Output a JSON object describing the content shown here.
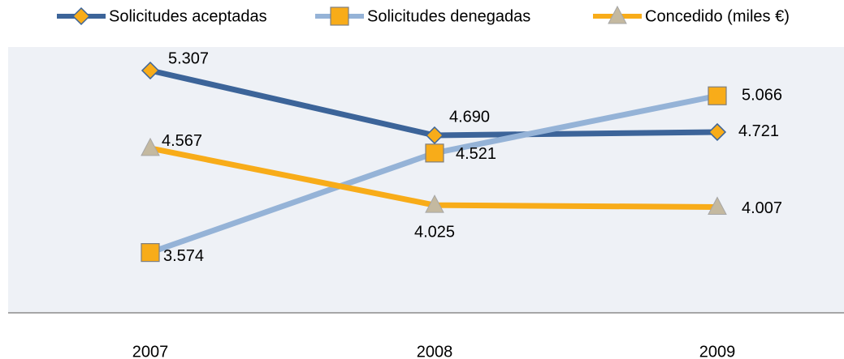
{
  "chart_data": {
    "type": "line",
    "categories": [
      "2007",
      "2008",
      "2009"
    ],
    "ylim": [
      3000,
      5500
    ],
    "legend": "top",
    "series": [
      {
        "name": "Solicitudes aceptadas",
        "color": "#3c6499",
        "marker": "diamond",
        "marker_color": "#f8ac19",
        "values": [
          5307,
          4690,
          4721
        ],
        "value_labels": [
          "5.307",
          "4.690",
          "4.721"
        ]
      },
      {
        "name": "Solicitudes denegadas",
        "color": "#95b3d7",
        "marker": "square",
        "marker_color": "#f8ac19",
        "values": [
          3574,
          4521,
          5066
        ],
        "value_labels": [
          "3.574",
          "4.521",
          "5.066"
        ]
      },
      {
        "name": "Concedido (miles €)",
        "color": "#f8ac19",
        "marker": "triangle",
        "marker_color": "#c4b9a0",
        "values": [
          4567,
          4025,
          4007
        ],
        "value_labels": [
          "4.567",
          "4.025",
          "4.007"
        ]
      }
    ]
  }
}
